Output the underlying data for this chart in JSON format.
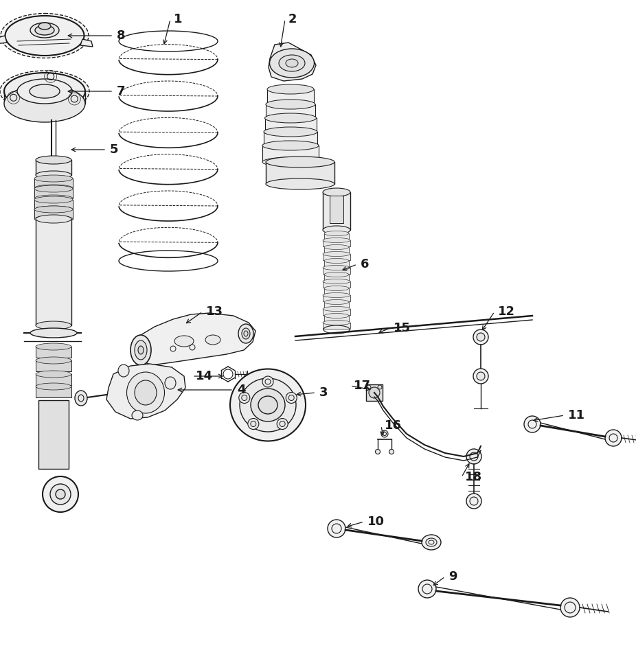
{
  "bg_color": "#ffffff",
  "line_color": "#1a1a1a",
  "fig_width": 9.26,
  "fig_height": 9.44,
  "dpi": 100,
  "title_fontsize": 11,
  "label_fontsize": 13
}
